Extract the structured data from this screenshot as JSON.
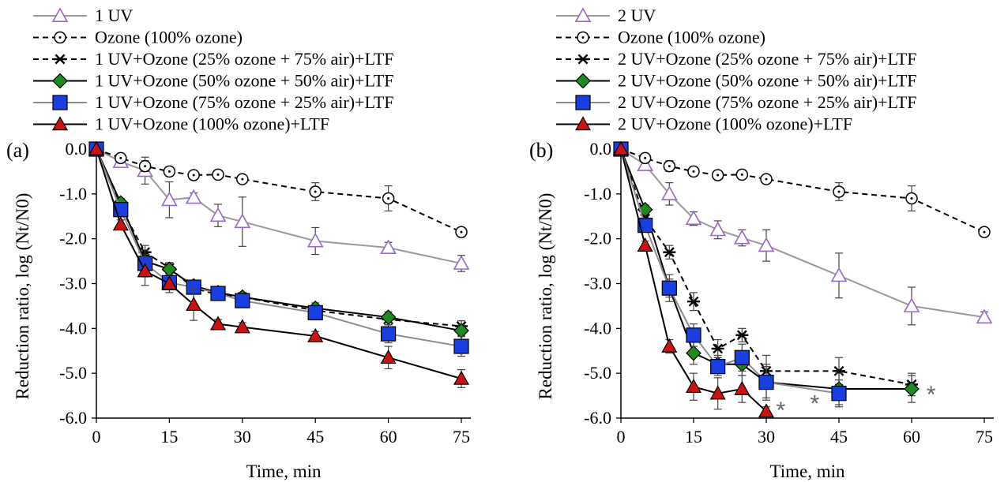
{
  "chart_data": [
    {
      "type": "line",
      "panel_label": "(a)",
      "xlabel": "Time, min",
      "ylabel": "Reduction ratio, log (Nt/N0)",
      "xlim": [
        -2,
        78
      ],
      "ylim": [
        -6.0,
        0.0
      ],
      "xticks": [
        "0",
        "15",
        "30",
        "45",
        "60",
        "75"
      ],
      "yticks": [
        "0.0",
        "-1.0",
        "-2.0",
        "-3.0",
        "-4.0",
        "-5.0",
        "-6.0"
      ],
      "grid": false,
      "legend_position": "top-left, above plot",
      "series": [
        {
          "name": "1 UV",
          "marker": "triangle-open",
          "color": "#9966cc",
          "line_color": "#999999",
          "dash": "solid",
          "x": [
            0,
            5,
            10,
            15,
            20,
            25,
            30,
            45,
            60,
            75
          ],
          "y": [
            0,
            -0.28,
            -0.48,
            -1.13,
            -1.08,
            -1.48,
            -1.62,
            -2.05,
            -2.2,
            -2.55
          ],
          "err": [
            0.05,
            0.12,
            0.3,
            0.4,
            0.1,
            0.25,
            0.55,
            0.3,
            0.12,
            0.18
          ]
        },
        {
          "name": "Ozone (100% ozone)",
          "marker": "circle-open",
          "color": "#000000",
          "line_color": "#000000",
          "dash": "dash",
          "x": [
            0,
            5,
            10,
            15,
            20,
            25,
            30,
            45,
            60,
            75
          ],
          "y": [
            0,
            -0.2,
            -0.38,
            -0.5,
            -0.58,
            -0.57,
            -0.67,
            -0.95,
            -1.1,
            -1.85
          ],
          "err": [
            0.03,
            0.08,
            0.12,
            0.1,
            0.08,
            0.08,
            0.08,
            0.2,
            0.28,
            0.08
          ]
        },
        {
          "name": "1 UV+Ozone (25% ozone + 75% air)+LTF",
          "marker": "asterisk",
          "color": "#000000",
          "line_color": "#000000",
          "dash": "dash",
          "x": [
            0,
            5,
            10,
            15,
            20,
            25,
            30,
            45,
            60,
            75
          ],
          "y": [
            0,
            -1.3,
            -2.3,
            -2.65,
            -3.1,
            -3.25,
            -3.3,
            -3.6,
            -3.8,
            -3.95
          ],
          "err": [
            0.03,
            0.1,
            0.15,
            0.12,
            0.1,
            0.1,
            0.1,
            0.12,
            0.12,
            0.12
          ]
        },
        {
          "name": "1 UV+Ozone (50% ozone + 50% air)+LTF",
          "marker": "diamond",
          "color": "#1f8a1f",
          "line_color": "#000000",
          "dash": "solid",
          "x": [
            0,
            5,
            10,
            15,
            20,
            25,
            30,
            45,
            60,
            75
          ],
          "y": [
            0,
            -1.2,
            -2.5,
            -2.68,
            -3.05,
            -3.2,
            -3.3,
            -3.55,
            -3.75,
            -4.05
          ],
          "err": [
            0.03,
            0.1,
            0.15,
            0.12,
            0.1,
            0.1,
            0.1,
            0.12,
            0.12,
            0.12
          ]
        },
        {
          "name": "1 UV+Ozone (75% ozone + 25% air)+LTF",
          "marker": "square",
          "color": "#1a3fe0",
          "line_color": "#8c8c8c",
          "dash": "solid",
          "x": [
            0,
            5,
            10,
            15,
            20,
            25,
            30,
            45,
            60,
            75
          ],
          "y": [
            0,
            -1.35,
            -2.55,
            -2.98,
            -3.08,
            -3.22,
            -3.38,
            -3.65,
            -4.12,
            -4.4
          ],
          "err": [
            0.03,
            0.1,
            0.3,
            0.15,
            0.12,
            0.1,
            0.1,
            0.15,
            0.2,
            0.22
          ]
        },
        {
          "name": "1 UV+Ozone (100% ozone)+LTF",
          "marker": "triangle",
          "color": "#cc1111",
          "line_color": "#000000",
          "dash": "solid",
          "x": [
            0,
            5,
            10,
            15,
            20,
            25,
            30,
            45,
            60,
            75
          ],
          "y": [
            0,
            -1.68,
            -2.72,
            -3.0,
            -3.47,
            -3.9,
            -3.97,
            -4.17,
            -4.65,
            -5.12
          ],
          "err": [
            0.03,
            0.1,
            0.32,
            0.2,
            0.35,
            0.1,
            0.1,
            0.1,
            0.25,
            0.2
          ]
        }
      ]
    },
    {
      "type": "line",
      "panel_label": "(b)",
      "xlabel": "Time, min",
      "ylabel": "Reduction ratio, log (Nt/N0)",
      "xlim": [
        -2,
        78
      ],
      "ylim": [
        -6.0,
        0.0
      ],
      "xticks": [
        "0",
        "15",
        "30",
        "45",
        "60",
        "75"
      ],
      "yticks": [
        "0.0",
        "-1.0",
        "-2.0",
        "-3.0",
        "-4.0",
        "-5.0",
        "-6.0"
      ],
      "grid": false,
      "legend_position": "top-left, above plot",
      "annotations": [
        {
          "text": "*",
          "x": 33,
          "y": -5.75
        },
        {
          "text": "*",
          "x": 40,
          "y": -5.6
        },
        {
          "text": "*",
          "x": 64,
          "y": -5.4
        }
      ],
      "series": [
        {
          "name": "2 UV",
          "marker": "triangle-open",
          "color": "#9966cc",
          "line_color": "#999999",
          "dash": "solid",
          "x": [
            0,
            5,
            10,
            15,
            20,
            25,
            30,
            45,
            60,
            75
          ],
          "y": [
            0,
            -0.35,
            -1.0,
            -1.55,
            -1.8,
            -1.98,
            -2.15,
            -2.82,
            -3.5,
            -3.75
          ],
          "err": [
            0.05,
            0.1,
            0.25,
            0.15,
            0.2,
            0.18,
            0.35,
            0.5,
            0.42,
            0.12
          ]
        },
        {
          "name": "Ozone (100% ozone)",
          "marker": "circle-open",
          "color": "#000000",
          "line_color": "#000000",
          "dash": "dash",
          "x": [
            0,
            5,
            10,
            15,
            20,
            25,
            30,
            45,
            60,
            75
          ],
          "y": [
            0,
            -0.2,
            -0.38,
            -0.5,
            -0.58,
            -0.57,
            -0.67,
            -0.95,
            -1.1,
            -1.85
          ],
          "err": [
            0.03,
            0.08,
            0.12,
            0.1,
            0.08,
            0.08,
            0.08,
            0.2,
            0.28,
            0.08
          ]
        },
        {
          "name": "2 UV+Ozone (25% ozone + 75% air)+LTF",
          "marker": "asterisk",
          "color": "#000000",
          "line_color": "#000000",
          "dash": "dash",
          "x": [
            0,
            5,
            10,
            15,
            20,
            25,
            30,
            45,
            60
          ],
          "y": [
            0,
            -1.55,
            -2.3,
            -3.4,
            -4.45,
            -4.15,
            -4.95,
            -4.95,
            -5.25
          ],
          "err": [
            0.03,
            0.1,
            0.15,
            0.2,
            0.2,
            0.15,
            0.35,
            0.3,
            0.25
          ]
        },
        {
          "name": "2 UV+Ozone (50% ozone + 50% air)+LTF",
          "marker": "diamond",
          "color": "#1f8a1f",
          "line_color": "#000000",
          "dash": "solid",
          "x": [
            0,
            5,
            10,
            15,
            20,
            25,
            30,
            45,
            60
          ],
          "y": [
            0,
            -1.35,
            -3.1,
            -4.55,
            -4.8,
            -4.8,
            -5.2,
            -5.35,
            -5.35
          ],
          "err": [
            0.03,
            0.1,
            0.2,
            0.25,
            0.2,
            0.25,
            0.4,
            0.35,
            0.3
          ]
        },
        {
          "name": "2 UV+Ozone (75% ozone + 25% air)+LTF",
          "marker": "square",
          "color": "#1a3fe0",
          "line_color": "#8c8c8c",
          "dash": "solid",
          "x": [
            0,
            5,
            10,
            15,
            20,
            25,
            30,
            45
          ],
          "y": [
            0,
            -1.7,
            -3.1,
            -4.15,
            -4.85,
            -4.65,
            -5.2,
            -5.45
          ],
          "err": [
            0.03,
            0.1,
            0.3,
            0.25,
            0.2,
            0.3,
            0.35,
            0.3
          ]
        },
        {
          "name": "2 UV+Ozone (100% ozone)+LTF",
          "marker": "triangle",
          "color": "#cc1111",
          "line_color": "#000000",
          "dash": "solid",
          "x": [
            0,
            5,
            10,
            15,
            20,
            25,
            30
          ],
          "y": [
            0,
            -2.15,
            -4.4,
            -5.3,
            -5.45,
            -5.35,
            -5.85
          ],
          "err": [
            0.03,
            0.1,
            0.15,
            0.3,
            0.35,
            0.3,
            0.1
          ]
        }
      ]
    }
  ]
}
